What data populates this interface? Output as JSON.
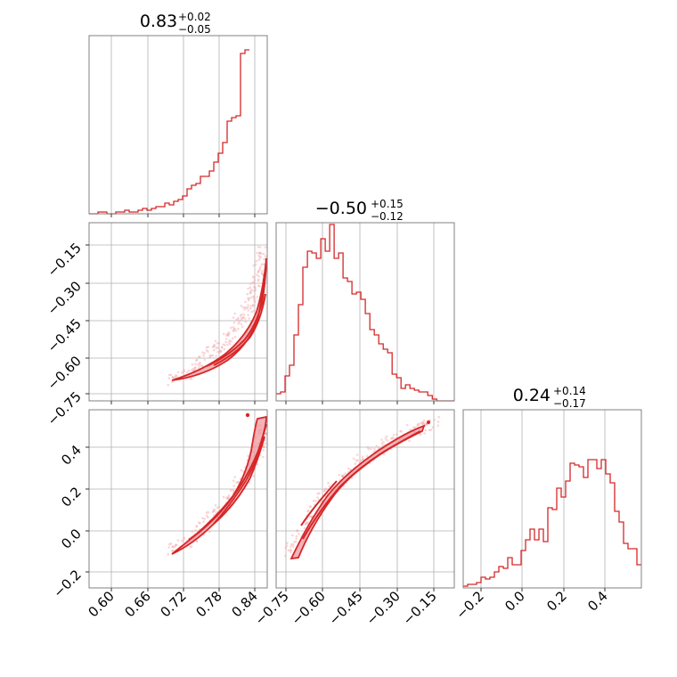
{
  "color": "#d62728",
  "chart_data": [
    {
      "type": "histogram",
      "panel": "diag-0",
      "title": {
        "value": "0.83",
        "plus": "+0.02",
        "minus": "−0.05"
      },
      "xlim": [
        0.565,
        0.865
      ],
      "grid": true,
      "bins": {
        "start": 0.565,
        "width": 0.0075,
        "counts": [
          0,
          0,
          0.01,
          0.01,
          0,
          0,
          0.01,
          0.01,
          0.02,
          0.01,
          0.01,
          0.02,
          0.03,
          0.02,
          0.03,
          0.04,
          0.04,
          0.06,
          0.05,
          0.07,
          0.08,
          0.1,
          0.14,
          0.16,
          0.17,
          0.21,
          0.21,
          0.24,
          0.29,
          0.34,
          0.4,
          0.52,
          0.54,
          0.55,
          0.9,
          0.92
        ]
      }
    },
    {
      "type": "histogram",
      "panel": "diag-1",
      "title": {
        "value": "−0.50",
        "plus": "+0.15",
        "minus": "−0.12"
      },
      "xlim": [
        -0.785,
        -0.09
      ],
      "grid": true,
      "bins": {
        "start": -0.785,
        "width": 0.0174,
        "counts": [
          0.04,
          0.05,
          0.14,
          0.2,
          0.37,
          0.54,
          0.75,
          0.84,
          0.83,
          0.8,
          0.91,
          0.84,
          0.99,
          0.8,
          0.83,
          0.69,
          0.67,
          0.6,
          0.61,
          0.57,
          0.49,
          0.4,
          0.37,
          0.32,
          0.29,
          0.27,
          0.15,
          0.13,
          0.07,
          0.09,
          0.07,
          0.06,
          0.05,
          0.05,
          0.03,
          0.01,
          0.0,
          0.0,
          0.0,
          0.0
        ]
      }
    },
    {
      "type": "histogram",
      "panel": "diag-2",
      "title": {
        "value": "0.24",
        "plus": "+0.14",
        "minus": "−0.17"
      },
      "xlim": [
        -0.28,
        0.58
      ],
      "grid": true,
      "bins": {
        "start": -0.28,
        "width": 0.0215,
        "counts": [
          0.01,
          0.02,
          0.02,
          0.03,
          0.06,
          0.05,
          0.06,
          0.09,
          0.12,
          0.11,
          0.17,
          0.13,
          0.13,
          0.21,
          0.27,
          0.33,
          0.27,
          0.33,
          0.26,
          0.45,
          0.44,
          0.56,
          0.51,
          0.6,
          0.7,
          0.69,
          0.68,
          0.62,
          0.72,
          0.72,
          0.67,
          0.72,
          0.64,
          0.59,
          0.43,
          0.37,
          0.25,
          0.22,
          0.22,
          0.13
        ]
      }
    },
    {
      "type": "scatter-contour",
      "panel": "r1c0",
      "xlim": [
        0.565,
        0.865
      ],
      "ylim": [
        -0.785,
        -0.09
      ],
      "band": [
        [
          0.7,
          -0.715
        ],
        [
          0.74,
          -0.665
        ],
        [
          0.78,
          -0.585
        ],
        [
          0.81,
          -0.505
        ],
        [
          0.835,
          -0.415
        ],
        [
          0.85,
          -0.31
        ],
        [
          0.86,
          -0.185
        ]
      ],
      "points_note": "posterior samples along curved band"
    },
    {
      "type": "scatter-contour",
      "panel": "r2c0",
      "xlim": [
        0.565,
        0.865
      ],
      "ylim": [
        -0.28,
        0.58
      ],
      "band": [
        [
          0.7,
          -0.11
        ],
        [
          0.74,
          -0.035
        ],
        [
          0.78,
          0.075
        ],
        [
          0.81,
          0.185
        ],
        [
          0.835,
          0.285
        ],
        [
          0.85,
          0.39
        ],
        [
          0.86,
          0.5
        ]
      ]
    },
    {
      "type": "scatter-contour",
      "panel": "r2c1",
      "xlim": [
        -0.785,
        -0.09
      ],
      "ylim": [
        -0.28,
        0.58
      ],
      "band": [
        [
          -0.74,
          -0.13
        ],
        [
          -0.69,
          -0.02
        ],
        [
          -0.63,
          0.1
        ],
        [
          -0.56,
          0.21
        ],
        [
          -0.49,
          0.29
        ],
        [
          -0.41,
          0.37
        ],
        [
          -0.33,
          0.43
        ],
        [
          -0.25,
          0.48
        ],
        [
          -0.16,
          0.52
        ]
      ]
    }
  ],
  "ticks": {
    "x0": [
      "0.60",
      "0.66",
      "0.72",
      "0.78",
      "0.84"
    ],
    "x1": [
      "−0.75",
      "−0.60",
      "−0.45",
      "−0.30",
      "−0.15"
    ],
    "x2": [
      "−0.2",
      "0.0",
      "0.2",
      "0.4"
    ],
    "y1": [
      "−0.15",
      "−0.30",
      "−0.45",
      "−0.60",
      "−0.75"
    ],
    "y2": [
      "0.4",
      "0.2",
      "0.0",
      "−0.2"
    ]
  }
}
